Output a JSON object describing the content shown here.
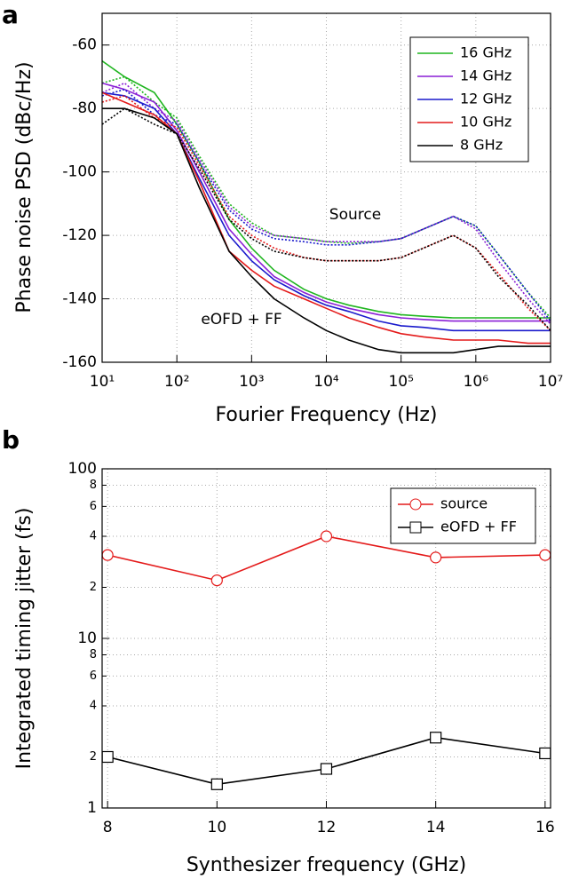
{
  "chart_data": [
    {
      "type": "line",
      "label": "a",
      "xlabel": "Fourier Frequency (Hz)",
      "ylabel": "Phase noise PSD (dBc/Hz)",
      "xscale": "log",
      "yscale": "linear",
      "grid": true,
      "legend": "upper right",
      "annotations": [
        "Source",
        "eOFD + FF"
      ],
      "xlim": [
        10,
        10000000
      ],
      "xticks": [
        {
          "value": 10,
          "label": "10¹"
        },
        {
          "value": 100,
          "label": "10²"
        },
        {
          "value": 1000,
          "label": "10³"
        },
        {
          "value": 10000,
          "label": "10⁴"
        },
        {
          "value": 100000,
          "label": "10⁵"
        },
        {
          "value": 1000000,
          "label": "10⁶"
        },
        {
          "value": 10000000,
          "label": "10⁷"
        }
      ],
      "ylim": [
        -160,
        -50
      ],
      "yticks": [
        -160,
        -140,
        -120,
        -100,
        -80,
        -60
      ],
      "x": [
        10,
        20,
        50,
        100,
        200,
        500,
        1000,
        2000,
        5000,
        10000,
        20000,
        50000,
        100000,
        200000,
        500000,
        1000000,
        2000000,
        5000000,
        10000000
      ],
      "series": [
        {
          "name": "16 GHz",
          "color": "#1fb51f",
          "values": [
            -65,
            -70,
            -75,
            -85,
            -97,
            -115,
            -124,
            -131,
            -137,
            -140,
            -142,
            -144,
            -145,
            -145.5,
            -146,
            -146,
            -146,
            -146,
            -146
          ],
          "source_values": [
            -72,
            -70,
            -78,
            -83,
            -95,
            -110,
            -116,
            -120,
            -121,
            -122,
            -122.5,
            -122,
            -121,
            -118,
            -114,
            -117,
            -126,
            -138,
            -146
          ]
        },
        {
          "name": "14 GHz",
          "color": "#8a1fd6",
          "values": [
            -72,
            -74,
            -78,
            -87,
            -100,
            -118,
            -126,
            -133,
            -138,
            -141,
            -143,
            -145,
            -146,
            -146.5,
            -147,
            -147,
            -147,
            -147,
            -147
          ],
          "source_values": [
            -75,
            -72,
            -80,
            -84,
            -96,
            -111,
            -117,
            -120,
            -121,
            -122,
            -122,
            -122,
            -121,
            -118,
            -114,
            -118,
            -128,
            -140,
            -148
          ]
        },
        {
          "name": "12 GHz",
          "color": "#1a1acc",
          "values": [
            -75,
            -76,
            -80,
            -88,
            -102,
            -120,
            -128,
            -134,
            -139,
            -142,
            -144,
            -147,
            -148.5,
            -149,
            -150,
            -150,
            -150,
            -150,
            -150
          ],
          "source_values": [
            -76,
            -74,
            -82,
            -85,
            -97,
            -112,
            -118,
            -121,
            -122,
            -123,
            -123,
            -122,
            -121,
            -118,
            -114,
            -117,
            -126,
            -138,
            -147
          ]
        },
        {
          "name": "10 GHz",
          "color": "#e41a1a",
          "values": [
            -75,
            -78,
            -82,
            -88,
            -103,
            -125,
            -131,
            -136,
            -140,
            -143,
            -146,
            -149,
            -151,
            -152,
            -153,
            -153,
            -153,
            -154,
            -154
          ],
          "source_values": [
            -78,
            -76,
            -83,
            -86,
            -98,
            -114,
            -120,
            -124,
            -127,
            -128,
            -128,
            -128,
            -127,
            -124,
            -120,
            -124,
            -132,
            -143,
            -150
          ]
        },
        {
          "name": "8 GHz",
          "color": "#000000",
          "values": [
            -80,
            -80,
            -83,
            -88,
            -105,
            -125,
            -133,
            -140,
            -146,
            -150,
            -153,
            -156,
            -157,
            -157,
            -157,
            -156,
            -155,
            -155,
            -155
          ],
          "source_values": [
            -85,
            -80,
            -85,
            -88,
            -99,
            -115,
            -121,
            -125,
            -127,
            -128,
            -128,
            -128,
            -127,
            -124,
            -120,
            -124,
            -133,
            -142,
            -150
          ]
        }
      ]
    },
    {
      "type": "line",
      "label": "b",
      "xlabel": "Synthesizer frequency (GHz)",
      "ylabel": "Integrated timing jitter (fs)",
      "xscale": "linear",
      "yscale": "log",
      "grid": true,
      "legend": "upper right",
      "xlim": [
        7.9,
        16.1
      ],
      "xticks": [
        8,
        10,
        12,
        14,
        16
      ],
      "ylim": [
        1,
        100
      ],
      "yticks": [
        1,
        2,
        4,
        6,
        8,
        10,
        {
          "value": 20,
          "label": "2"
        },
        {
          "value": 40,
          "label": "4"
        },
        {
          "value": 60,
          "label": "6"
        },
        {
          "value": 80,
          "label": "8"
        },
        100
      ],
      "x": [
        8,
        10,
        12,
        14,
        16
      ],
      "series": [
        {
          "name": "source",
          "color": "#e41a1a",
          "marker": "circle",
          "values": [
            31,
            22,
            40,
            30,
            31
          ]
        },
        {
          "name": "eOFD + FF",
          "color": "#000000",
          "marker": "square",
          "values": [
            2.0,
            1.38,
            1.7,
            2.6,
            2.1
          ]
        }
      ]
    }
  ]
}
